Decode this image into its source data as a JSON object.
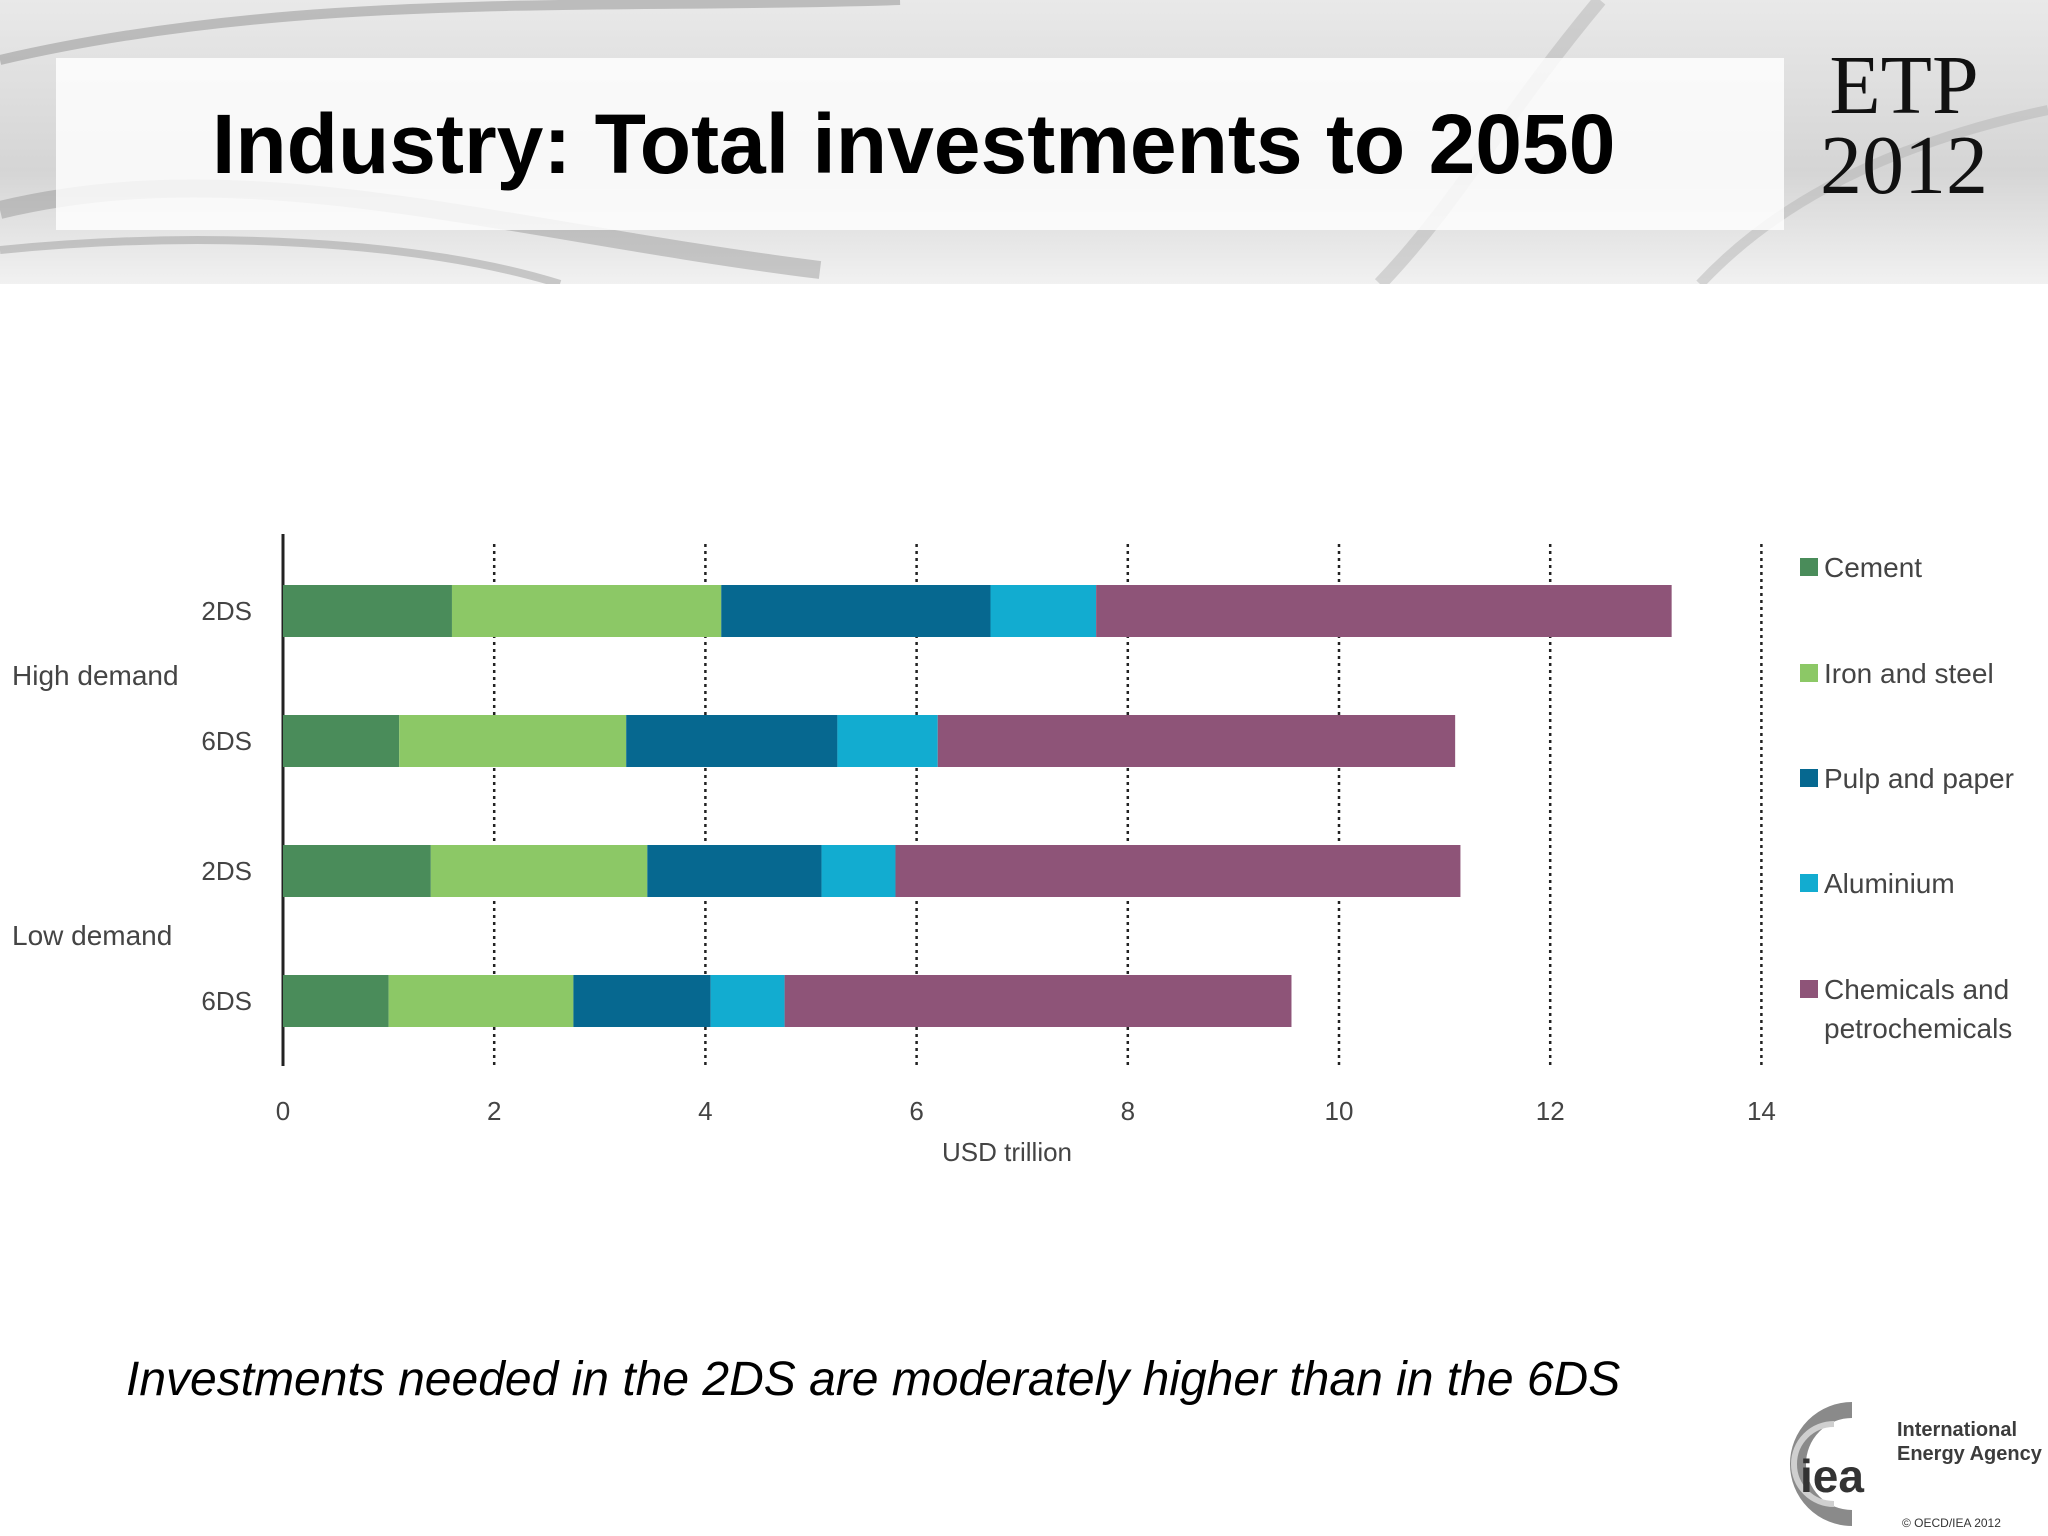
{
  "slide": {
    "title": "Industry: Total investments to 2050",
    "badge_line1": "ETP",
    "badge_line2": "2012",
    "caption": "Investments needed in the 2DS are moderately higher than in the 6DS",
    "copyright": "© OECD/IEA 2012"
  },
  "logo": {
    "mark": "iea",
    "agency_line1": "International",
    "agency_line2": "Energy Agency"
  },
  "chart_data": {
    "type": "bar",
    "orientation": "horizontal",
    "stacked": true,
    "xlabel": "USD trillion",
    "xlim": [
      0,
      14
    ],
    "xticks": [
      0,
      2,
      4,
      6,
      8,
      10,
      12,
      14
    ],
    "grid": "vertical dotted",
    "legend_position": "right",
    "groups": [
      {
        "label": "High demand",
        "categories": [
          "2DS",
          "6DS"
        ]
      },
      {
        "label": "Low demand",
        "categories": [
          "2DS",
          "6DS"
        ]
      }
    ],
    "categories": [
      "2DS",
      "6DS",
      "2DS",
      "6DS"
    ],
    "series": [
      {
        "name": "Cement",
        "color": "#4a8c5a",
        "values": [
          1.6,
          1.1,
          1.4,
          1.0
        ]
      },
      {
        "name": "Iron and steel",
        "color": "#8cc866",
        "values": [
          2.55,
          2.15,
          2.05,
          1.75
        ]
      },
      {
        "name": "Pulp and paper",
        "color": "#066890",
        "values": [
          2.55,
          2.0,
          1.65,
          1.3
        ]
      },
      {
        "name": "Aluminium",
        "color": "#12acd0",
        "values": [
          1.0,
          0.95,
          0.7,
          0.7
        ]
      },
      {
        "name": "Chemicals and petrochemicals",
        "color": "#8e5478",
        "values": [
          5.45,
          4.9,
          5.35,
          4.8
        ]
      }
    ]
  }
}
